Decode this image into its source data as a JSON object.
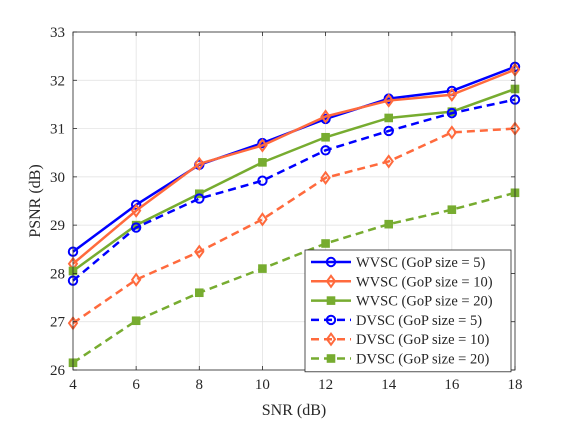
{
  "chart_data": {
    "type": "line",
    "xlabel": "SNR (dB)",
    "ylabel": "PSNR (dB)",
    "x": [
      4,
      6,
      8,
      10,
      12,
      14,
      16,
      18
    ],
    "xlim": [
      4,
      18
    ],
    "ylim": [
      26,
      33
    ],
    "xticks": [
      4,
      6,
      8,
      10,
      12,
      14,
      16,
      18
    ],
    "yticks": [
      26,
      27,
      28,
      29,
      30,
      31,
      32,
      33
    ],
    "grid": true,
    "legend_position": "bottom-right",
    "series": [
      {
        "name": "WVSC (GoP size = 5)",
        "color": "#0000ff",
        "dash": "solid",
        "marker": "circle",
        "values": [
          28.45,
          29.42,
          30.25,
          30.7,
          31.2,
          31.62,
          31.78,
          32.28
        ]
      },
      {
        "name": "WVSC (GoP size = 10)",
        "color": "#ff6a3d",
        "dash": "solid",
        "marker": "diamond",
        "values": [
          28.2,
          29.3,
          30.27,
          30.65,
          31.25,
          31.58,
          31.7,
          32.22
        ]
      },
      {
        "name": "WVSC (GoP size = 20)",
        "color": "#77ac30",
        "dash": "solid",
        "marker": "square",
        "values": [
          28.05,
          29.0,
          29.65,
          30.3,
          30.82,
          31.22,
          31.35,
          31.82
        ]
      },
      {
        "name": "DVSC (GoP size = 5)",
        "color": "#0000ff",
        "dash": "dashed",
        "marker": "circle",
        "values": [
          27.85,
          28.95,
          29.55,
          29.92,
          30.55,
          30.95,
          31.32,
          31.6
        ]
      },
      {
        "name": "DVSC (GoP size = 10)",
        "color": "#ff6a3d",
        "dash": "dashed",
        "marker": "diamond",
        "values": [
          26.97,
          27.87,
          28.45,
          29.12,
          29.98,
          30.32,
          30.92,
          31.0
        ]
      },
      {
        "name": "DVSC (GoP size = 20)",
        "color": "#77ac30",
        "dash": "dashed",
        "marker": "square",
        "values": [
          26.15,
          27.02,
          27.6,
          28.1,
          28.62,
          29.02,
          29.32,
          29.67
        ]
      }
    ]
  }
}
